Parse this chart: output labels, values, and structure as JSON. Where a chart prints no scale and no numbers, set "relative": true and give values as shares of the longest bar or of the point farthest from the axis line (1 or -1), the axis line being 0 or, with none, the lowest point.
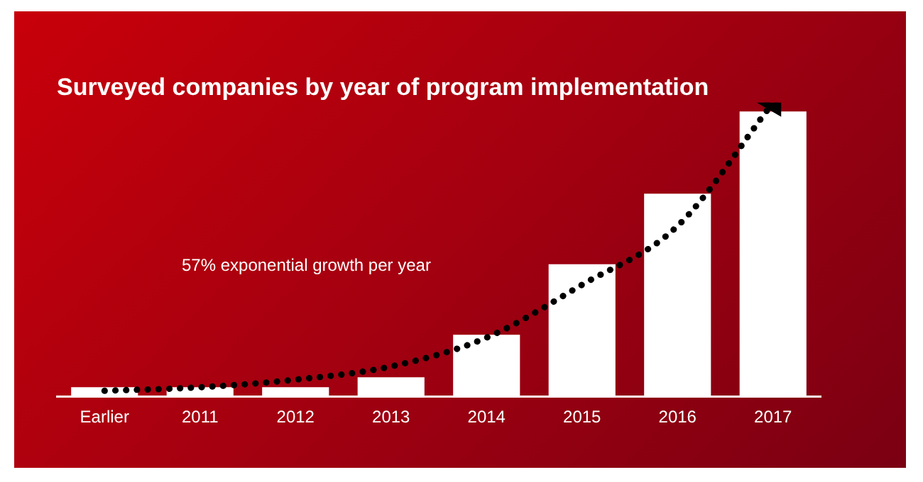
{
  "chart_data": {
    "type": "bar",
    "title": "Surveyed companies by year of program implementation",
    "relative": true,
    "legend": false,
    "categories": [
      "Earlier",
      "2011",
      "2012",
      "2013",
      "2014",
      "2015",
      "2016",
      "2017"
    ],
    "series": [
      {
        "color": "#ffffff",
        "values": [
          0.031,
          0.031,
          0.031,
          0.065,
          0.21,
          0.45,
          0.69,
          0.97
        ]
      },
      {
        "type": "line",
        "color": "#000000",
        "line_style": "dotted",
        "values": [
          0.019,
          0.031,
          0.057,
          0.102,
          0.2,
          0.38,
          0.58,
          1
        ]
      }
    ],
    "annotations": [
      "57% exponential growth per year"
    ]
  }
}
